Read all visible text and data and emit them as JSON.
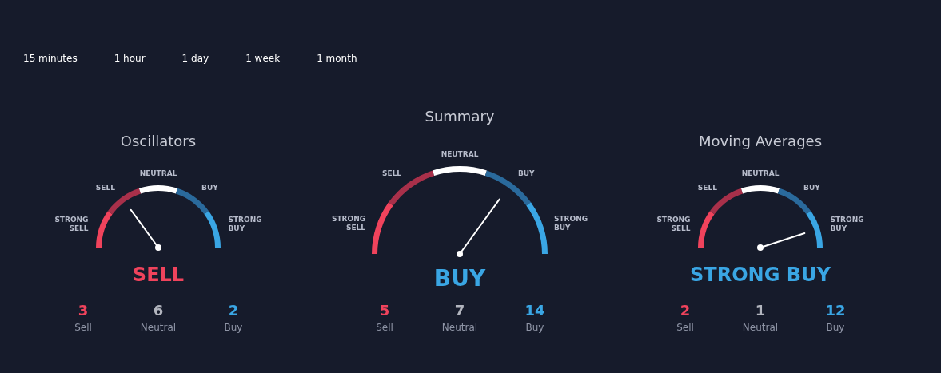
{
  "chart_data": [
    {
      "type": "other",
      "annotations": [
        "15 minutes",
        "1 hour",
        "1 day",
        "1 week",
        "1 month"
      ]
    },
    {
      "type": "donut",
      "title": "Oscillators",
      "categories": [
        "STRONG SELL",
        "SELL",
        "NEUTRAL",
        "BUY",
        "STRONG BUY"
      ],
      "values": [
        20,
        20,
        20,
        20,
        20
      ],
      "colors": [
        "#f0435c",
        "#a8304a",
        "#ffffff",
        "#2a6a9c",
        "#3aa6e4"
      ],
      "needle": "SELL",
      "legend": false,
      "annotations": [
        "SELL",
        "3",
        "Sell",
        "6",
        "Neutral",
        "2",
        "Buy"
      ]
    },
    {
      "type": "donut",
      "title": "Summary",
      "categories": [
        "STRONG SELL",
        "SELL",
        "NEUTRAL",
        "BUY",
        "STRONG BUY"
      ],
      "values": [
        20,
        20,
        20,
        20,
        20
      ],
      "colors": [
        "#f0435c",
        "#a8304a",
        "#ffffff",
        "#2a6a9c",
        "#3aa6e4"
      ],
      "needle": "BUY",
      "legend": false,
      "annotations": [
        "BUY",
        "5",
        "Sell",
        "7",
        "Neutral",
        "14",
        "Buy"
      ]
    },
    {
      "type": "donut",
      "title": "Moving Averages",
      "categories": [
        "STRONG SELL",
        "SELL",
        "NEUTRAL",
        "BUY",
        "STRONG BUY"
      ],
      "values": [
        20,
        20,
        20,
        20,
        20
      ],
      "colors": [
        "#f0435c",
        "#a8304a",
        "#ffffff",
        "#2a6a9c",
        "#3aa6e4"
      ],
      "needle": "STRONG BUY",
      "legend": false,
      "annotations": [
        "STRONG BUY",
        "2",
        "Sell",
        "1",
        "Neutral",
        "12",
        "Buy"
      ]
    }
  ]
}
